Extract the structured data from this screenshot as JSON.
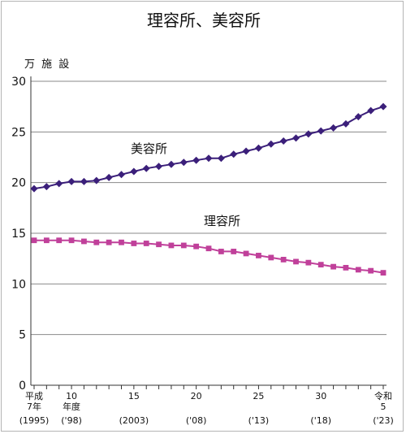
{
  "chart_data": {
    "type": "line",
    "title": "理容所、美容所",
    "unit_label": "万 施 設",
    "xlabel": "",
    "ylabel": "",
    "ylim": [
      0,
      30
    ],
    "yticks": [
      "0",
      "5",
      "10",
      "15",
      "20",
      "25",
      "30"
    ],
    "grid": true,
    "x": [
      1995,
      1996,
      1997,
      1998,
      1999,
      2000,
      2001,
      2002,
      2003,
      2004,
      2005,
      2006,
      2007,
      2008,
      2009,
      2010,
      2011,
      2012,
      2013,
      2014,
      2015,
      2016,
      2017,
      2018,
      2019,
      2020,
      2021,
      2022,
      2023
    ],
    "xtick_labels": [
      {
        "x": 1995,
        "lines": [
          "平成",
          "7年",
          "(1995)"
        ]
      },
      {
        "x": 1998,
        "lines": [
          "10",
          "年度",
          "('98)"
        ]
      },
      {
        "x": 2003,
        "lines": [
          "15",
          "",
          "(2003)"
        ]
      },
      {
        "x": 2008,
        "lines": [
          "20",
          "",
          "('08)"
        ]
      },
      {
        "x": 2013,
        "lines": [
          "25",
          "",
          "('13)"
        ]
      },
      {
        "x": 2018,
        "lines": [
          "30",
          "",
          "('18)"
        ]
      },
      {
        "x": 2023,
        "lines": [
          "令和",
          "5",
          "('23)"
        ]
      }
    ],
    "series": [
      {
        "name": "美容所",
        "color": "#3b1f7a",
        "marker": "diamond",
        "values": [
          19.4,
          19.6,
          19.9,
          20.1,
          20.1,
          20.2,
          20.5,
          20.8,
          21.1,
          21.4,
          21.6,
          21.8,
          22.0,
          22.2,
          22.4,
          22.4,
          22.8,
          23.1,
          23.4,
          23.8,
          24.1,
          24.4,
          24.8,
          25.1,
          25.4,
          25.8,
          26.5,
          27.1,
          27.5
        ]
      },
      {
        "name": "理容所",
        "color": "#c0409a",
        "marker": "square",
        "values": [
          14.3,
          14.3,
          14.3,
          14.3,
          14.2,
          14.1,
          14.1,
          14.1,
          14.0,
          14.0,
          13.9,
          13.8,
          13.8,
          13.7,
          13.5,
          13.2,
          13.2,
          13.0,
          12.8,
          12.6,
          12.4,
          12.2,
          12.1,
          11.9,
          11.7,
          11.6,
          11.4,
          11.3,
          11.1
        ]
      }
    ]
  }
}
